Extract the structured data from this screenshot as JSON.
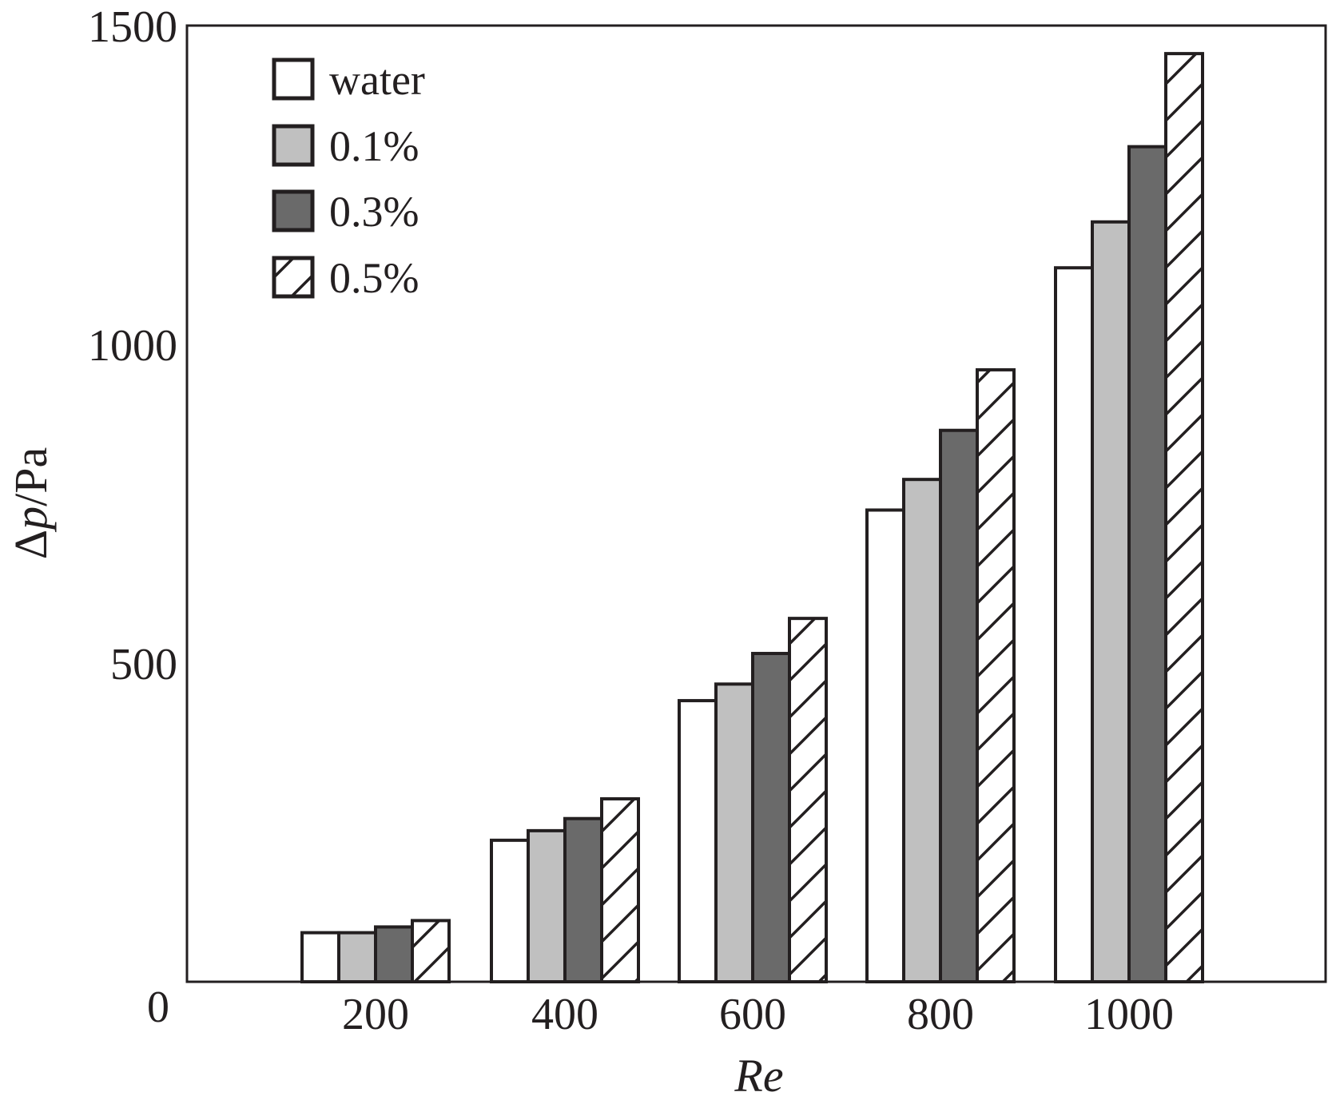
{
  "chart_data": {
    "type": "bar",
    "title": "",
    "xlabel": "Re",
    "ylabel_delta": "Δ",
    "ylabel_var": "p",
    "ylabel_unit": "/Pa",
    "categories": [
      "200",
      "400",
      "600",
      "800",
      "1000"
    ],
    "series": [
      {
        "name": "water",
        "pattern": "white",
        "values": [
          77,
          222,
          441,
          740,
          1120
        ]
      },
      {
        "name": "0.1%",
        "pattern": "lightgray",
        "values": [
          77,
          237,
          467,
          788,
          1192
        ]
      },
      {
        "name": "0.3%",
        "pattern": "darkgray",
        "values": [
          86,
          256,
          515,
          865,
          1310
        ]
      },
      {
        "name": "0.5%",
        "pattern": "hatch",
        "values": [
          96,
          287,
          570,
          960,
          1456
        ]
      }
    ],
    "ylim": [
      0,
      1500
    ],
    "yticks": [
      {
        "value": 0,
        "label": "0"
      },
      {
        "value": 500,
        "label": "500"
      },
      {
        "value": 1000,
        "label": "1000"
      },
      {
        "value": 1500,
        "label": "1500"
      }
    ],
    "grid": false,
    "legend_position": "top-left",
    "colors": {
      "stroke": "#231f20",
      "white": "#ffffff",
      "lightgray": "#c0c0c0",
      "darkgray": "#6a6a6a",
      "hatch_bg": "#ffffff"
    }
  }
}
